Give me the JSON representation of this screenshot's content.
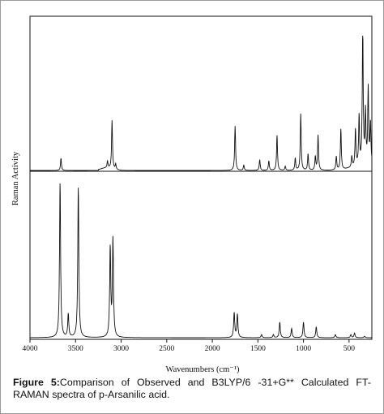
{
  "figure": {
    "label": "Figure 5:",
    "caption": "Comparison of Observed and B3LYP/6 -31+G** Calculated FT-RAMAN spectra of p-Arsanilic acid."
  },
  "chart_data": {
    "type": "line",
    "xlabel": "Wavenumbers (cm⁻¹)",
    "ylabel": "Raman Activity",
    "xlim": [
      4000,
      250
    ],
    "x_reversed": true,
    "x_ticks": [
      4000,
      3500,
      3000,
      2500,
      2000,
      1500,
      1000,
      500
    ],
    "y_ticks_shown": false,
    "layout": "two stacked panels sharing x axis",
    "series": [
      {
        "panel": "top",
        "peaks": [
          {
            "x": 3660,
            "y": 0.09
          },
          {
            "x": 3150,
            "y": 0.05
          },
          {
            "x": 3100,
            "y": 0.36
          },
          {
            "x": 3060,
            "y": 0.04
          },
          {
            "x": 1750,
            "y": 0.33
          },
          {
            "x": 1655,
            "y": 0.04
          },
          {
            "x": 1480,
            "y": 0.08
          },
          {
            "x": 1380,
            "y": 0.07
          },
          {
            "x": 1290,
            "y": 0.26
          },
          {
            "x": 1200,
            "y": 0.03
          },
          {
            "x": 1090,
            "y": 0.09
          },
          {
            "x": 1030,
            "y": 0.42
          },
          {
            "x": 950,
            "y": 0.12
          },
          {
            "x": 870,
            "y": 0.1
          },
          {
            "x": 840,
            "y": 0.26
          },
          {
            "x": 640,
            "y": 0.1
          },
          {
            "x": 590,
            "y": 0.3
          },
          {
            "x": 470,
            "y": 0.08
          },
          {
            "x": 430,
            "y": 0.27
          },
          {
            "x": 390,
            "y": 0.36
          },
          {
            "x": 350,
            "y": 1.0
          },
          {
            "x": 320,
            "y": 0.38
          },
          {
            "x": 290,
            "y": 0.56
          },
          {
            "x": 265,
            "y": 0.3
          }
        ]
      },
      {
        "panel": "bottom",
        "peaks": [
          {
            "x": 3670,
            "y": 1.0
          },
          {
            "x": 3580,
            "y": 0.15
          },
          {
            "x": 3470,
            "y": 0.97
          },
          {
            "x": 3120,
            "y": 0.57
          },
          {
            "x": 3090,
            "y": 0.63
          },
          {
            "x": 1760,
            "y": 0.16
          },
          {
            "x": 1725,
            "y": 0.15
          },
          {
            "x": 1460,
            "y": 0.02
          },
          {
            "x": 1330,
            "y": 0.02
          },
          {
            "x": 1260,
            "y": 0.1
          },
          {
            "x": 1130,
            "y": 0.06
          },
          {
            "x": 1000,
            "y": 0.1
          },
          {
            "x": 860,
            "y": 0.07
          },
          {
            "x": 650,
            "y": 0.02
          },
          {
            "x": 480,
            "y": 0.02
          },
          {
            "x": 440,
            "y": 0.03
          },
          {
            "x": 330,
            "y": 0.01
          }
        ]
      }
    ]
  }
}
